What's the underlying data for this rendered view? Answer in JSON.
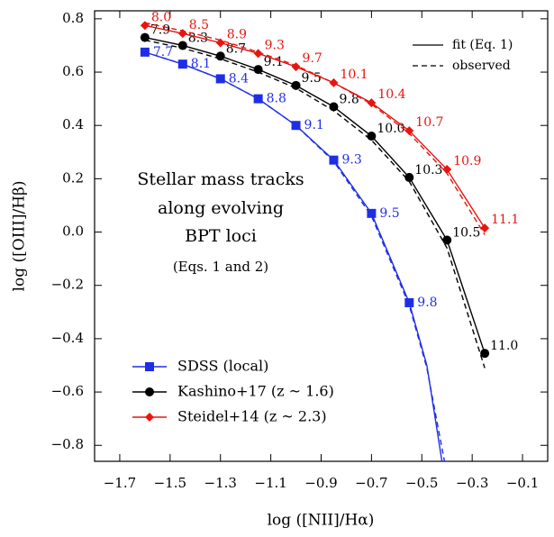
{
  "chart_data": {
    "type": "line",
    "x_label": "log ([NII]/Hα)",
    "y_label": "log ([OIII]/Hβ)",
    "annotation": [
      "Stellar mass tracks",
      "along evolving",
      "BPT loci",
      "(Eqs. 1 and 2)"
    ],
    "line_legend": [
      "fit (Eq. 1)",
      "observed"
    ],
    "xlim": [
      -1.8,
      0.0
    ],
    "ylim": [
      -0.86,
      0.83
    ],
    "xticks": [
      {
        "value": -1.7,
        "label": "−1.7"
      },
      {
        "value": -1.5,
        "label": "−1.5"
      },
      {
        "value": -1.3,
        "label": "−1.3"
      },
      {
        "value": -1.1,
        "label": "−1.1"
      },
      {
        "value": -0.9,
        "label": "−0.9"
      },
      {
        "value": -0.7,
        "label": "−0.7"
      },
      {
        "value": -0.5,
        "label": "−0.5"
      },
      {
        "value": -0.3,
        "label": "−0.3"
      },
      {
        "value": -0.1,
        "label": "−0.1"
      }
    ],
    "yticks": [
      {
        "value": -0.8,
        "label": "−0.8"
      },
      {
        "value": -0.6,
        "label": "−0.6"
      },
      {
        "value": -0.4,
        "label": "−0.4"
      },
      {
        "value": -0.2,
        "label": "−0.2"
      },
      {
        "value": 0.0,
        "label": "0.0"
      },
      0.2,
      0.4,
      0.6,
      0.8
    ],
    "series": [
      {
        "name": "SDSS (local)",
        "color": "#1f2ee6",
        "marker": "square",
        "x": [
          -1.6,
          -1.45,
          -1.3,
          -1.15,
          -1.0,
          -0.85,
          -0.7,
          -0.55
        ],
        "values": [
          0.675,
          0.63,
          0.575,
          0.5,
          0.4,
          0.27,
          0.07,
          -0.265
        ],
        "mass_labels": [
          "7.7",
          "8.1",
          "8.4",
          "8.8",
          "9.1",
          "9.3",
          "9.5",
          "9.8"
        ],
        "fit_x": [
          -1.6,
          -1.45,
          -1.3,
          -1.15,
          -1.0,
          -0.85,
          -0.7,
          -0.55,
          -0.48,
          -0.42
        ],
        "fit_y": [
          0.675,
          0.63,
          0.575,
          0.5,
          0.4,
          0.27,
          0.07,
          -0.265,
          -0.5,
          -0.86
        ],
        "obs_x": [
          -1.6,
          -1.45,
          -1.3,
          -1.15,
          -1.0,
          -0.85,
          -0.7,
          -0.55,
          -0.48,
          -0.41
        ],
        "obs_y": [
          0.675,
          0.63,
          0.575,
          0.5,
          0.4,
          0.265,
          0.06,
          -0.275,
          -0.51,
          -0.86
        ]
      },
      {
        "name": "Kashino+17 (z ~ 1.6)",
        "color": "#000000",
        "marker": "circle",
        "x": [
          -1.6,
          -1.45,
          -1.3,
          -1.15,
          -1.0,
          -0.85,
          -0.7,
          -0.55,
          -0.4,
          -0.25
        ],
        "values": [
          0.73,
          0.7,
          0.66,
          0.61,
          0.55,
          0.47,
          0.36,
          0.205,
          -0.03,
          -0.455
        ],
        "mass_labels": [
          "7.9",
          "8.3",
          "8.7",
          "9.1",
          "9.5",
          "9.8",
          "10.0",
          "10.3",
          "10.5",
          "11.0"
        ],
        "fit_x": [
          -1.6,
          -1.45,
          -1.3,
          -1.15,
          -1.0,
          -0.85,
          -0.7,
          -0.55,
          -0.4,
          -0.25
        ],
        "fit_y": [
          0.73,
          0.7,
          0.66,
          0.61,
          0.55,
          0.47,
          0.36,
          0.205,
          -0.03,
          -0.455
        ],
        "obs_x": [
          -1.6,
          -1.45,
          -1.3,
          -1.15,
          -1.0,
          -0.85,
          -0.7,
          -0.55,
          -0.4,
          -0.25
        ],
        "obs_y": [
          0.72,
          0.69,
          0.65,
          0.6,
          0.54,
          0.455,
          0.345,
          0.19,
          -0.06,
          -0.51
        ]
      },
      {
        "name": "Steidel+14 (z ~ 2.3)",
        "color": "#e8150f",
        "marker": "diamond",
        "x": [
          -1.6,
          -1.45,
          -1.3,
          -1.15,
          -1.0,
          -0.85,
          -0.7,
          -0.55,
          -0.4,
          -0.25
        ],
        "values": [
          0.775,
          0.745,
          0.71,
          0.67,
          0.62,
          0.56,
          0.485,
          0.38,
          0.235,
          0.015
        ],
        "mass_labels": [
          "8.0",
          "8.5",
          "8.9",
          "9.3",
          "9.7",
          "10.1",
          "10.4",
          "10.7",
          "10.9",
          "11.1"
        ],
        "fit_x": [
          -1.6,
          -1.45,
          -1.3,
          -1.15,
          -1.0,
          -0.85,
          -0.7,
          -0.55,
          -0.4,
          -0.25
        ],
        "fit_y": [
          0.775,
          0.745,
          0.71,
          0.67,
          0.62,
          0.56,
          0.485,
          0.38,
          0.235,
          0.015
        ],
        "obs_x": [
          -1.6,
          -1.45,
          -1.3,
          -1.15,
          -1.0,
          -0.85,
          -0.7,
          -0.55,
          -0.4,
          -0.25
        ],
        "obs_y": [
          0.785,
          0.755,
          0.72,
          0.675,
          0.625,
          0.56,
          0.48,
          0.37,
          0.22,
          -0.01
        ]
      }
    ]
  }
}
